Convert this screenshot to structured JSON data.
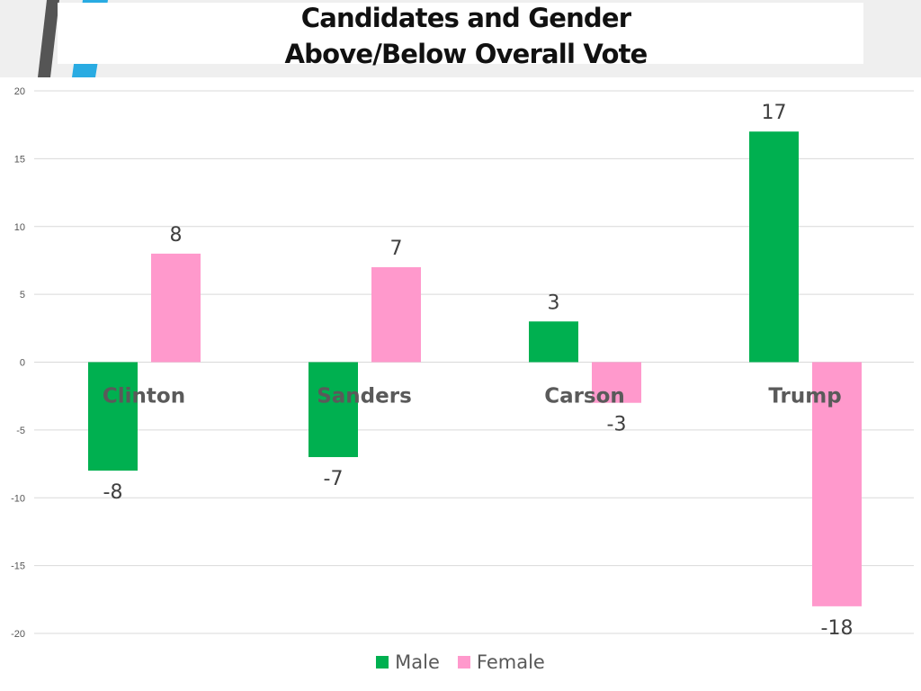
{
  "colors": {
    "male": "#00b050",
    "female": "#ff99cc",
    "grid": "#d9d9d9",
    "header_accent_dark": "#555555",
    "header_accent_blue": "#29abe2"
  },
  "chart_data": {
    "type": "bar",
    "title_line1": "Candidates and Gender",
    "title_line2": "Above/Below Overall Vote",
    "categories": [
      "Clinton",
      "Sanders",
      "Carson",
      "Trump"
    ],
    "series": [
      {
        "name": "Male",
        "values": [
          -8,
          -7,
          3,
          17
        ]
      },
      {
        "name": "Female",
        "values": [
          8,
          7,
          -3,
          -18
        ]
      }
    ],
    "ylim": [
      -20,
      20
    ],
    "yticks": [
      20,
      15,
      10,
      5,
      0,
      -5,
      -10,
      -15,
      -20
    ],
    "xlabel": "",
    "ylabel": "",
    "grid": true,
    "legend": "bottom-center"
  }
}
